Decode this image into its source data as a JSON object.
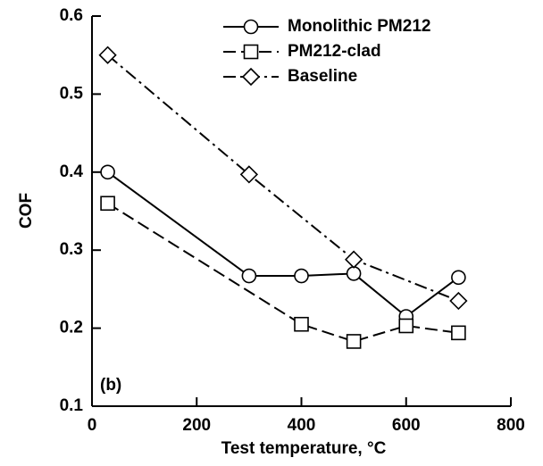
{
  "chart_data": {
    "type": "line",
    "xlabel": "Test temperature, °C",
    "ylabel": "COF",
    "annotation": "(b)",
    "xlim": [
      0,
      800
    ],
    "xticks": [
      0,
      200,
      400,
      600,
      800
    ],
    "ylim": [
      0.1,
      0.6
    ],
    "yticks": [
      0.1,
      0.2,
      0.3,
      0.4,
      0.5,
      0.6
    ],
    "series": [
      {
        "name": "Monolithic PM212",
        "color": "#000000",
        "marker": "circle",
        "dash": "solid",
        "x": [
          30,
          300,
          400,
          500,
          600,
          700
        ],
        "values": [
          0.4,
          0.267,
          0.267,
          0.27,
          0.215,
          0.265
        ]
      },
      {
        "name": "PM212-clad",
        "color": "#000000",
        "marker": "square",
        "dash": "dashed",
        "x": [
          30,
          400,
          500,
          600,
          700
        ],
        "values": [
          0.36,
          0.205,
          0.183,
          0.203,
          0.194
        ]
      },
      {
        "name": "Baseline",
        "color": "#000000",
        "marker": "diamond",
        "dash": "dashdot",
        "x": [
          30,
          300,
          500,
          700
        ],
        "values": [
          0.55,
          0.397,
          0.288,
          0.235
        ]
      }
    ]
  }
}
